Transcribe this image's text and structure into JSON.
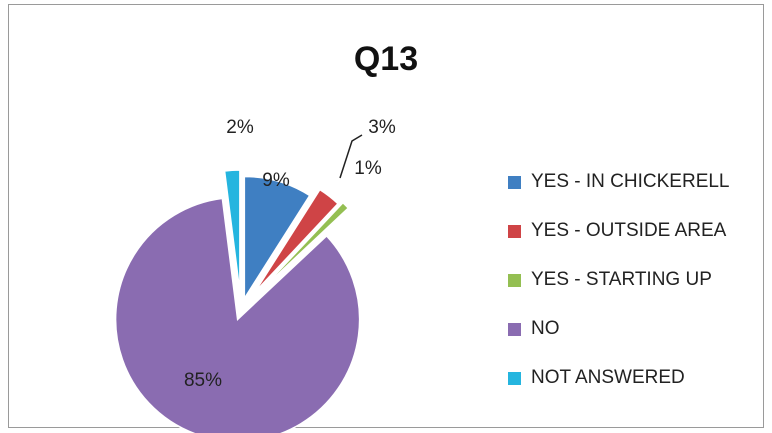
{
  "chart_data": {
    "type": "pie",
    "title": "Q13",
    "categories": [
      "YES - IN CHICKERELL",
      "YES - OUTSIDE AREA",
      "YES - STARTING UP",
      "NO",
      "NOT ANSWERED"
    ],
    "values": [
      9,
      3,
      1,
      85,
      2
    ],
    "labels": [
      "9%",
      "3%",
      "1%",
      "85%",
      "2%"
    ],
    "colors": [
      "#3f7fc2",
      "#cf4446",
      "#94bf52",
      "#8a6cb1",
      "#25b5df"
    ],
    "legend_position": "right"
  }
}
